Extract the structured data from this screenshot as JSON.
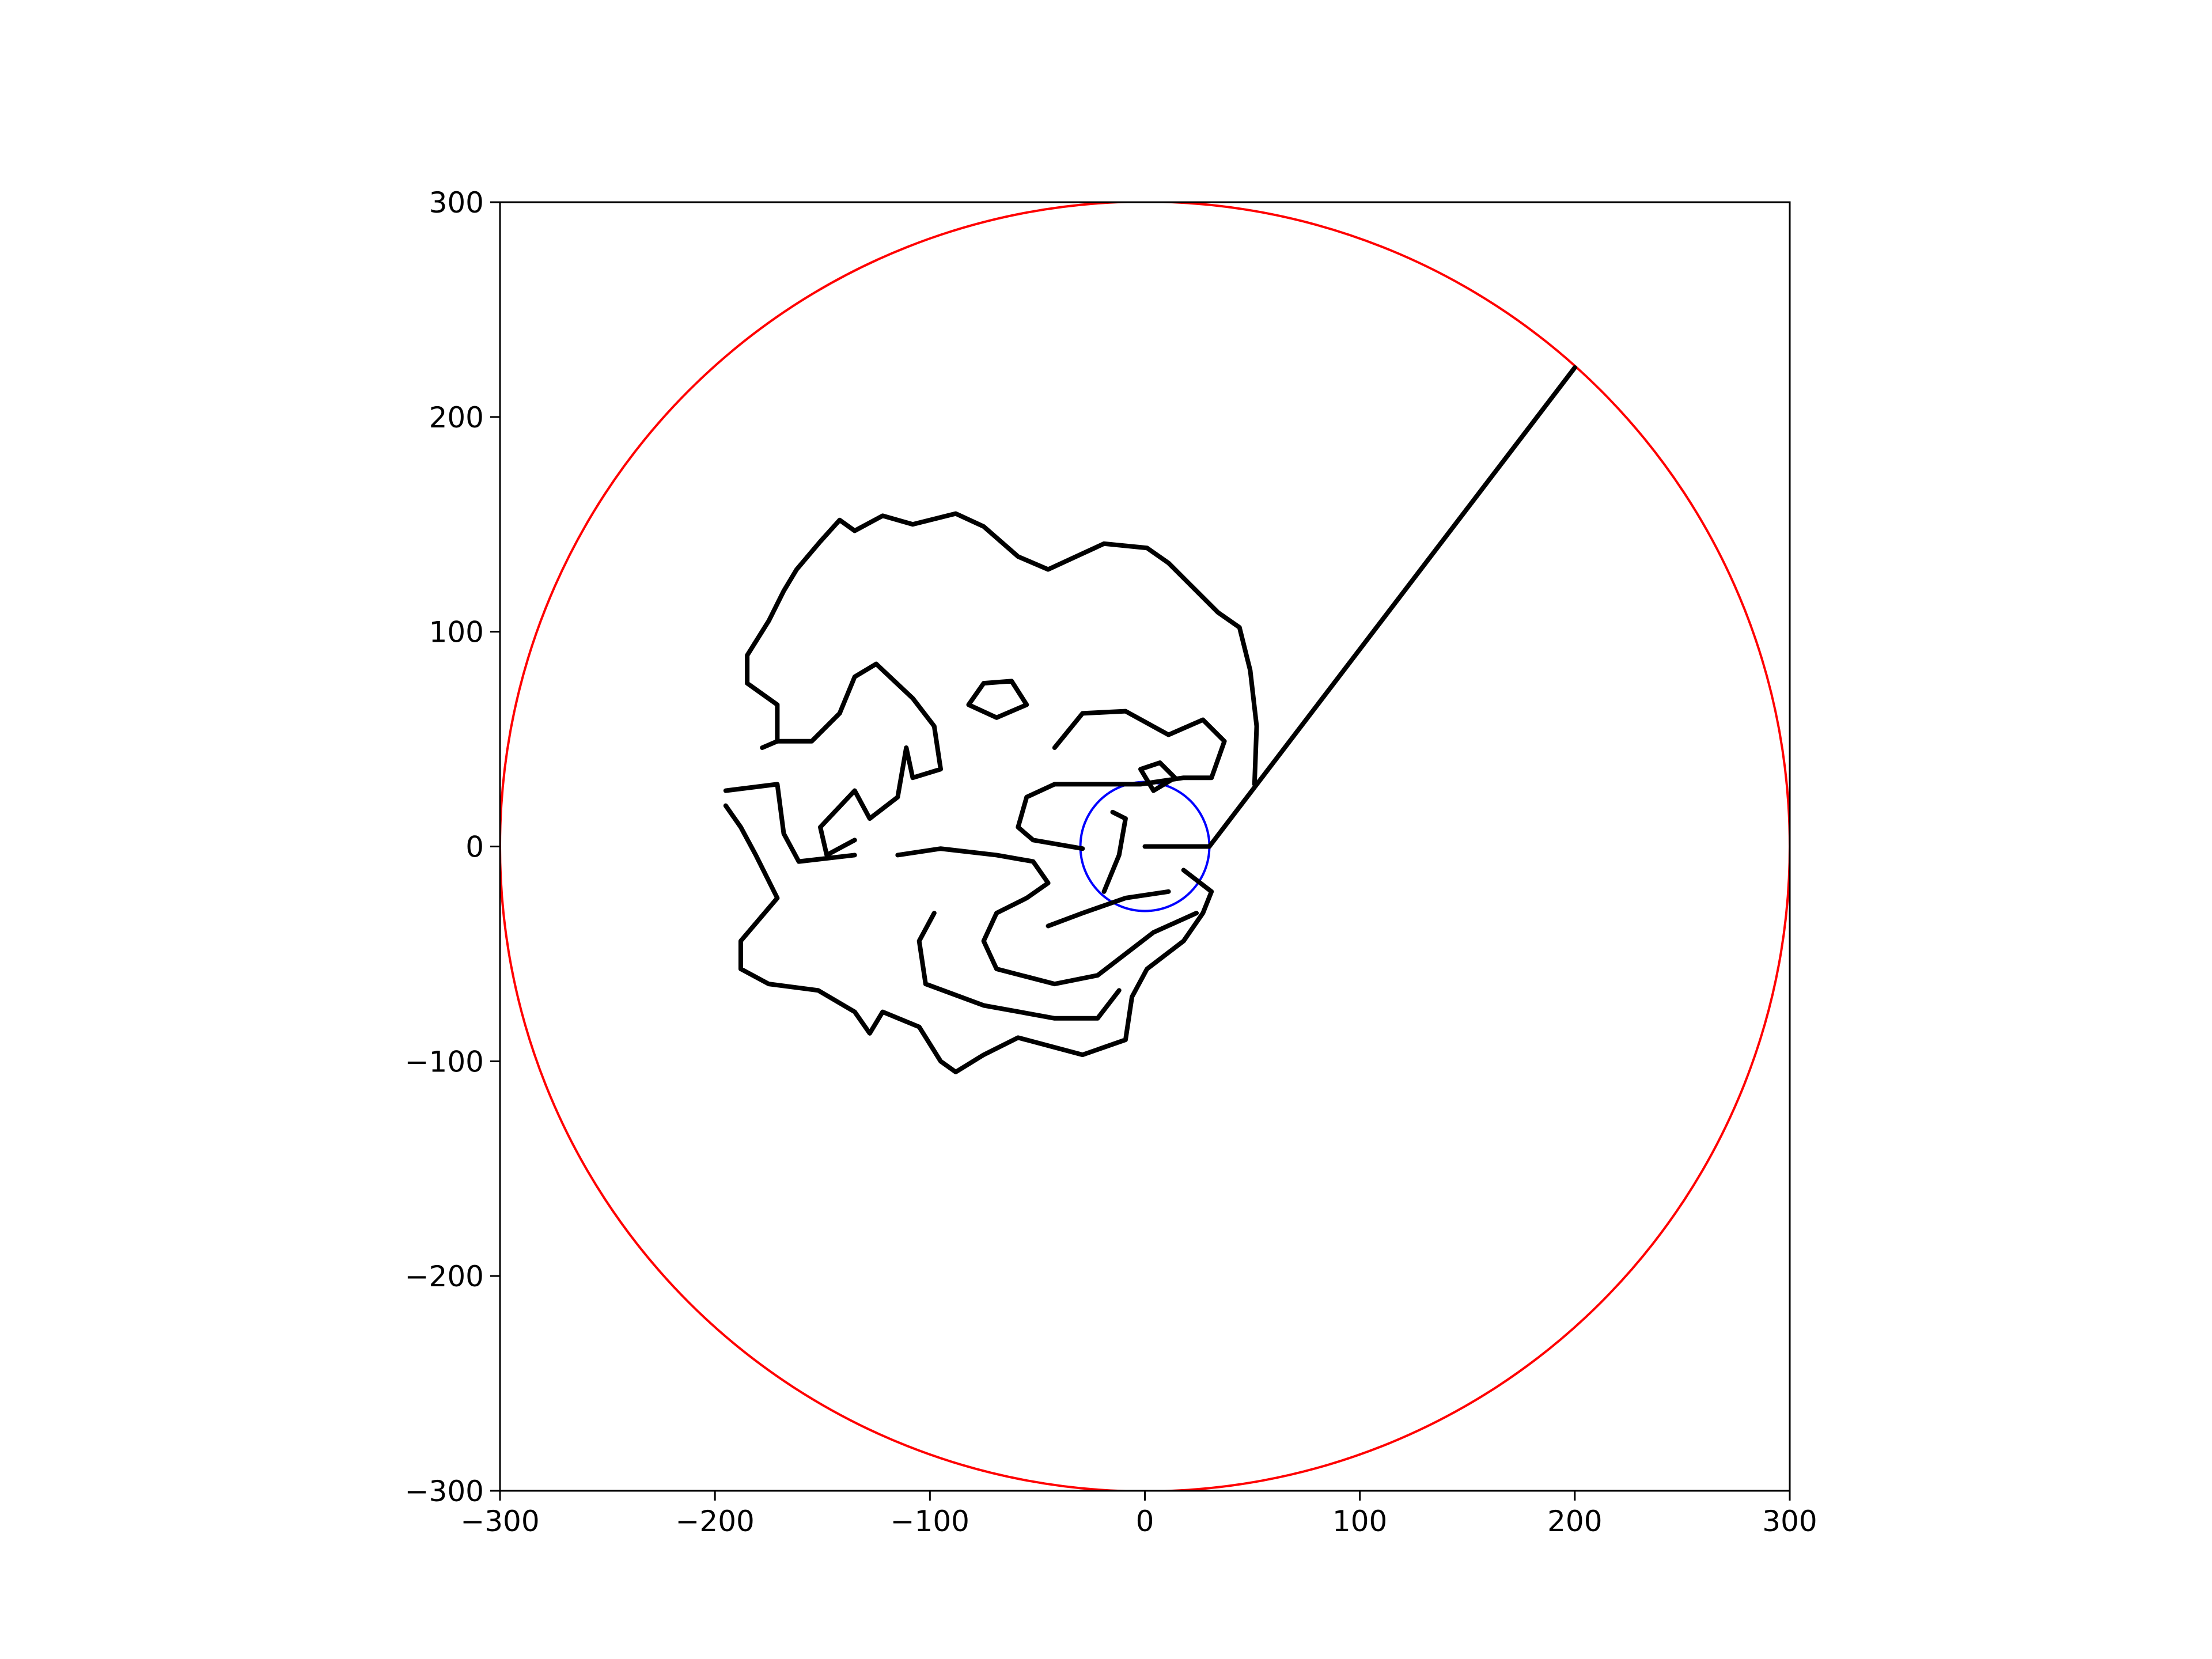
{
  "chart_data": {
    "type": "line",
    "xlim": [
      -300,
      300
    ],
    "ylim": [
      -300,
      300
    ],
    "xticks": [
      {
        "value": -300,
        "label": "−300"
      },
      {
        "value": -200,
        "label": "−200"
      },
      {
        "value": -100,
        "label": "−100"
      },
      0,
      100,
      200,
      300
    ],
    "yticks": [
      {
        "value": -300,
        "label": "−300"
      },
      {
        "value": -200,
        "label": "−200"
      },
      {
        "value": -100,
        "label": "−100"
      },
      0,
      100,
      200,
      300
    ],
    "circles": [
      {
        "center": [
          0,
          0
        ],
        "radius": 300,
        "color": "#ff0000"
      },
      {
        "center": [
          0,
          0
        ],
        "radius": 30,
        "color": "#0000ff"
      }
    ],
    "series": [
      {
        "color": "#000000",
        "x": [
          51,
          52,
          49,
          44,
          34,
          21,
          11,
          1,
          -19,
          -32,
          -45,
          -59,
          -75,
          -88,
          -108,
          -122,
          -135,
          -142,
          -151,
          -162,
          -168,
          -175,
          -185,
          -185,
          -171,
          -171,
          -178,
          null,
          -195,
          -188,
          -181,
          -171,
          -188,
          -188,
          -175,
          -152,
          -135,
          -128,
          -122,
          -105,
          -95,
          -88,
          -75,
          -59,
          -29,
          -9,
          -6,
          1,
          18,
          27,
          31,
          18,
          null,
          -115,
          -95,
          -69,
          -52,
          -45,
          -55,
          -69,
          -75,
          -69,
          -42,
          -22,
          -9,
          4,
          24,
          null,
          -45,
          -29,
          -9,
          11,
          null,
          -98,
          -105,
          -102,
          -75,
          -42,
          -22,
          -12,
          null,
          -171,
          -155,
          -142,
          -135,
          -125,
          -108,
          -98,
          -95,
          -108,
          -111,
          -115,
          -128,
          -135,
          -151,
          -148,
          -135,
          null,
          -195,
          -171,
          -168,
          -161,
          -135,
          null,
          -75,
          -62,
          -55,
          -69,
          -82,
          -75,
          null,
          -42,
          -29,
          -9,
          11,
          27,
          37,
          31,
          18,
          -2,
          -22,
          -42,
          -55,
          -59,
          -52,
          -29,
          null,
          -2,
          7,
          14,
          4,
          -2,
          null,
          -15,
          -9,
          -12,
          -19
        ],
        "values": [
          29,
          56,
          82,
          102,
          109,
          122,
          132,
          139,
          141,
          135,
          129,
          135,
          149,
          155,
          150,
          154,
          147,
          152,
          142,
          129,
          119,
          105,
          89,
          76,
          66,
          49,
          46,
          null,
          19,
          9,
          -4,
          -24,
          -44,
          -57,
          -64,
          -67,
          -77,
          -87,
          -77,
          -84,
          -100,
          -105,
          -97,
          -89,
          -97,
          -90,
          -70,
          -57,
          -44,
          -31,
          -21,
          -11,
          null,
          -4,
          -1,
          -4,
          -7,
          -17,
          -24,
          -31,
          -44,
          -57,
          -64,
          -60,
          -50,
          -40,
          -31,
          null,
          -37,
          -31,
          -24,
          -21,
          null,
          -31,
          -44,
          -64,
          -74,
          -80,
          -80,
          -67,
          null,
          49,
          49,
          62,
          79,
          85,
          69,
          56,
          36,
          32,
          46,
          23,
          13,
          26,
          9,
          -4,
          3,
          null,
          26,
          29,
          6,
          -7,
          -4,
          null,
          76,
          77,
          66,
          60,
          66,
          76,
          null,
          46,
          62,
          63,
          52,
          59,
          49,
          32,
          32,
          29,
          29,
          29,
          23,
          9,
          3,
          -1,
          null,
          36,
          39,
          32,
          26,
          36,
          null,
          16,
          13,
          -4,
          -21
        ]
      },
      {
        "color": "#000000",
        "x": [
          0,
          30
        ],
        "values": [
          0,
          0
        ]
      },
      {
        "color": "#000000",
        "x": [
          30,
          200
        ],
        "values": [
          0,
          223
        ]
      }
    ]
  }
}
